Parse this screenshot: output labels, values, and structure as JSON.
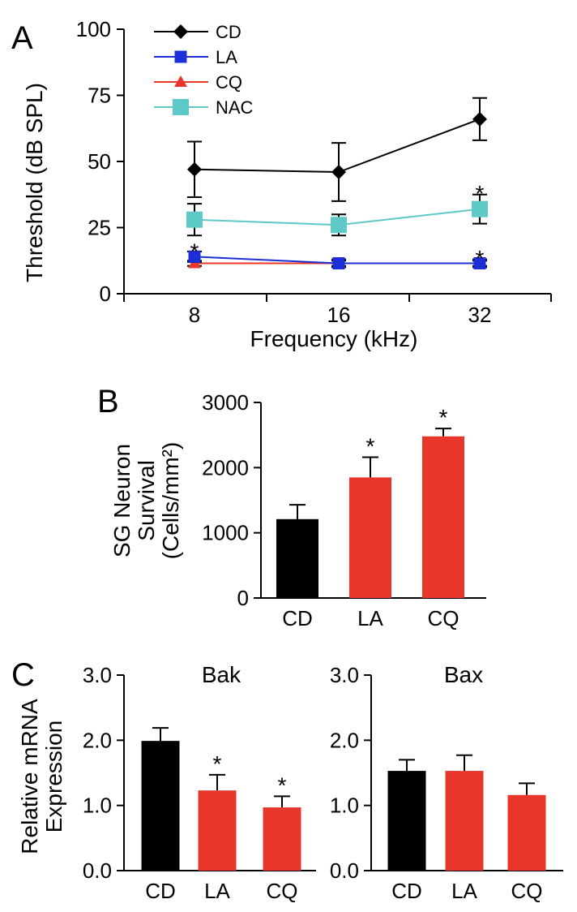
{
  "panel_labels": [
    "A",
    "B",
    "C"
  ],
  "chart_data": [
    {
      "panel": "A",
      "type": "line",
      "xlabel": "Frequency (kHz)",
      "ylabel": "Threshold (dB SPL)",
      "categories": [
        "8",
        "16",
        "32"
      ],
      "ylim": [
        0,
        100
      ],
      "yticks": [
        "0",
        "25",
        "50",
        "75",
        "100"
      ],
      "legend_position": "top-left",
      "series": [
        {
          "name": "CD",
          "color": "#000000",
          "marker": "diamond",
          "values": [
            47,
            46,
            66
          ],
          "errors": [
            10.5,
            11,
            8
          ]
        },
        {
          "name": "LA",
          "color": "#1c2fd6",
          "marker": "square",
          "values": [
            14,
            11.5,
            11.5
          ],
          "errors": [
            2,
            1.5,
            1.5
          ]
        },
        {
          "name": "CQ",
          "color": "#e8372a",
          "marker": "triangle",
          "values": [
            11.5,
            11.5,
            11.5
          ],
          "errors": [
            1,
            1,
            1
          ]
        },
        {
          "name": "NAC",
          "color": "#5ec9c7",
          "marker": "square",
          "values": [
            28,
            26,
            32
          ],
          "errors": [
            6,
            4,
            5.5
          ]
        }
      ],
      "significance": [
        {
          "category": "8",
          "marker": "*",
          "level": 18.5
        },
        {
          "category": "32",
          "marker": "*",
          "level": 40.5
        },
        {
          "category": "32",
          "marker": "*",
          "level": 16
        }
      ]
    },
    {
      "panel": "B",
      "type": "bar",
      "ylabel": [
        "SG Neuron",
        "Survival",
        "(Cells/mm²)"
      ],
      "categories": [
        "CD",
        "LA",
        "CQ"
      ],
      "values": [
        1210,
        1850,
        2480
      ],
      "errors": [
        220,
        310,
        120
      ],
      "colors": [
        "#000000",
        "#e8372a",
        "#e8372a"
      ],
      "ylim": [
        0,
        3000
      ],
      "yticks": [
        "0",
        "1000",
        "2000",
        "3000"
      ],
      "significance": [
        "",
        "*",
        "*"
      ]
    },
    {
      "panel": "C",
      "type": "bar",
      "title": "Bak",
      "ylabel": [
        "Relative mRNA",
        "Expression"
      ],
      "categories": [
        "CD",
        "LA",
        "CQ"
      ],
      "values": [
        1.99,
        1.23,
        0.97
      ],
      "errors": [
        0.2,
        0.24,
        0.17
      ],
      "colors": [
        "#000000",
        "#e8372a",
        "#e8372a"
      ],
      "ylim": [
        0,
        3
      ],
      "yticks": [
        "0.0",
        "1.0",
        "2.0",
        "3.0"
      ],
      "significance": [
        "",
        "*",
        "*"
      ]
    },
    {
      "panel": "C",
      "type": "bar",
      "title": "Bax",
      "categories": [
        "CD",
        "LA",
        "CQ"
      ],
      "values": [
        1.53,
        1.53,
        1.16
      ],
      "errors": [
        0.17,
        0.24,
        0.18
      ],
      "colors": [
        "#000000",
        "#e8372a",
        "#e8372a"
      ],
      "ylim": [
        0,
        3
      ],
      "yticks": [
        "0.0",
        "1.0",
        "2.0",
        "3.0"
      ],
      "significance": [
        "",
        "",
        ""
      ]
    }
  ]
}
